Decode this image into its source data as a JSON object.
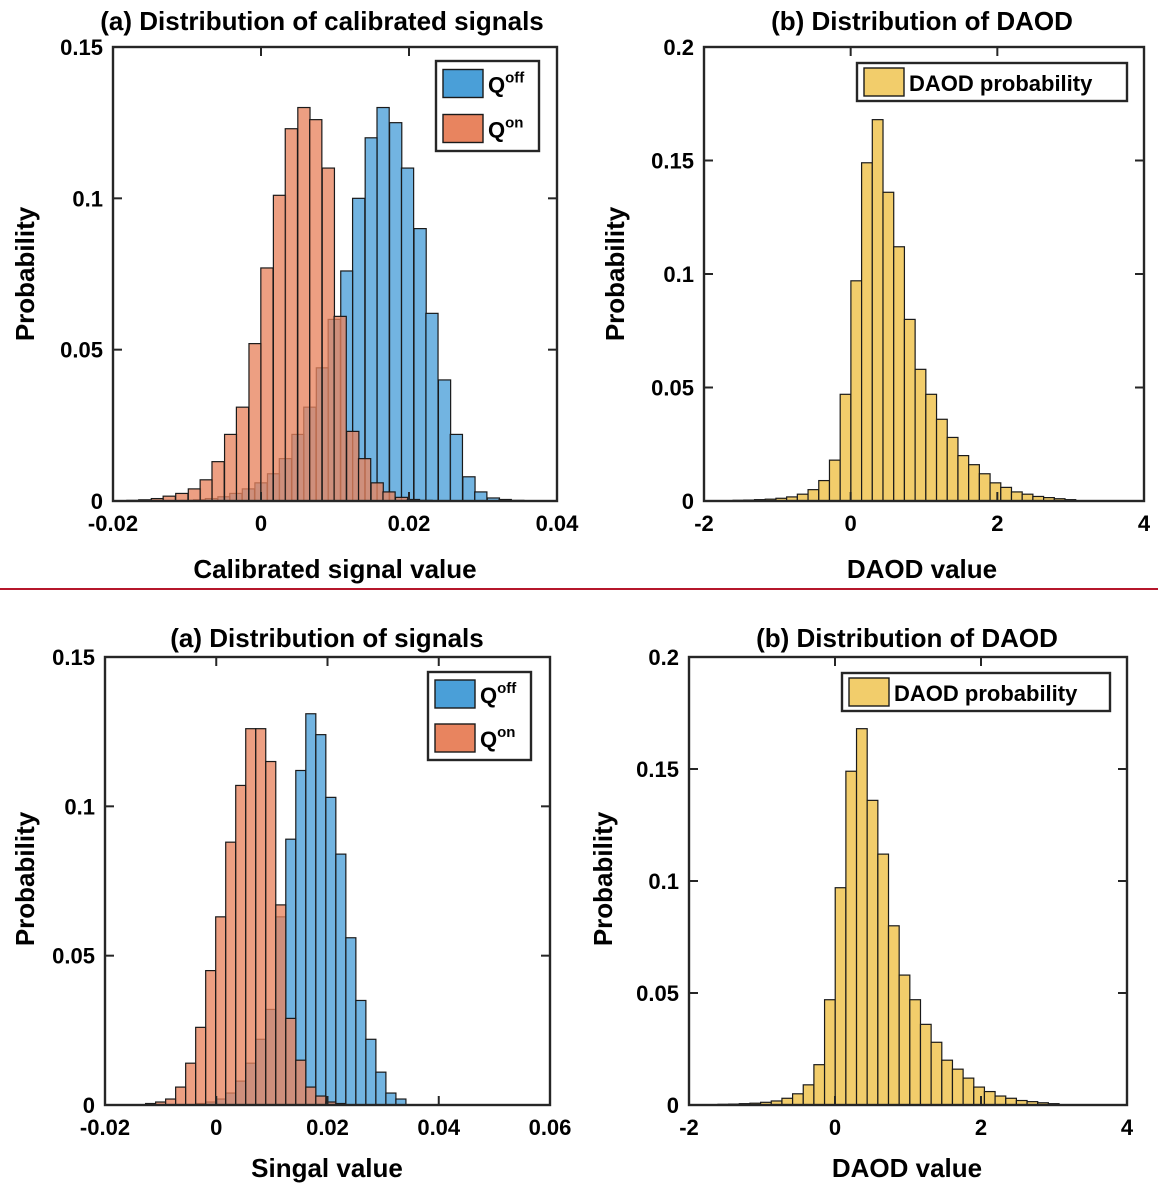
{
  "divider_color": "#b5162b",
  "colors": {
    "Q_off": "#4a9fd8",
    "Q_on": "#e8845f",
    "DAOD": "#f2cd6b",
    "edge": "#1a1a1a"
  },
  "chart_data": [
    {
      "type": "bar",
      "title": "(a) Distribution of calibrated signals",
      "xlabel": "Calibrated signal value",
      "ylabel": "Probability",
      "xlim": [
        -0.02,
        0.04
      ],
      "ylim": [
        0,
        0.15
      ],
      "xticks": [
        "-0.02",
        "0",
        "0.02",
        "0.04"
      ],
      "yticks": [
        "0",
        "0.05",
        "0.1",
        "0.15"
      ],
      "grid": false,
      "legend_position": "top-right",
      "bin_width": 0.00165,
      "series": [
        {
          "name": "Q",
          "sup": "off",
          "color_key": "Q_off",
          "x": [
            -0.01,
            -0.0083,
            -0.0067,
            -0.005,
            -0.0034,
            -0.0017,
            0.0,
            0.0017,
            0.0033,
            0.005,
            0.0066,
            0.0083,
            0.0099,
            0.0116,
            0.0132,
            0.0149,
            0.0165,
            0.0182,
            0.0198,
            0.0215,
            0.0231,
            0.0248,
            0.0264,
            0.0281,
            0.0297,
            0.0314,
            0.033,
            0.0347
          ],
          "values": [
            0.0002,
            0.0004,
            0.0008,
            0.0014,
            0.0025,
            0.004,
            0.006,
            0.009,
            0.014,
            0.022,
            0.031,
            0.044,
            0.06,
            0.076,
            0.1,
            0.12,
            0.13,
            0.125,
            0.11,
            0.09,
            0.062,
            0.04,
            0.022,
            0.008,
            0.003,
            0.001,
            0.0005,
            0.0002
          ]
        },
        {
          "name": "Q",
          "sup": "on",
          "color_key": "Q_on",
          "x": [
            -0.019,
            -0.0173,
            -0.0157,
            -0.014,
            -0.0124,
            -0.0107,
            -0.009,
            -0.0074,
            -0.0058,
            -0.0041,
            -0.0025,
            -0.0008,
            0.0008,
            0.0025,
            0.0041,
            0.0058,
            0.0074,
            0.0091,
            0.0107,
            0.0124,
            0.014,
            0.0157,
            0.0173,
            0.019,
            0.0206,
            0.0223
          ],
          "values": [
            0.0001,
            0.0002,
            0.0004,
            0.0008,
            0.0016,
            0.0025,
            0.004,
            0.007,
            0.013,
            0.022,
            0.031,
            0.052,
            0.077,
            0.101,
            0.123,
            0.13,
            0.126,
            0.11,
            0.061,
            0.023,
            0.014,
            0.006,
            0.003,
            0.0012,
            0.0005,
            0.0002
          ]
        }
      ]
    },
    {
      "type": "bar",
      "title": "(b) Distribution of DAOD",
      "xlabel": "DAOD value",
      "ylabel": "Probability",
      "xlim": [
        -2,
        4
      ],
      "ylim": [
        0,
        0.2
      ],
      "xticks": [
        "-2",
        "0",
        "2",
        "4"
      ],
      "yticks": [
        "0",
        "0.05",
        "0.1",
        "0.15",
        "0.2"
      ],
      "grid": false,
      "legend_position": "top-right",
      "bin_width": 0.146,
      "series": [
        {
          "name": "DAOD probability",
          "color_key": "DAOD",
          "x": [
            -1.53,
            -1.384,
            -1.238,
            -1.092,
            -0.946,
            -0.8,
            -0.654,
            -0.508,
            -0.362,
            -0.216,
            -0.07,
            0.076,
            0.222,
            0.368,
            0.514,
            0.66,
            0.806,
            0.952,
            1.098,
            1.244,
            1.39,
            1.536,
            1.682,
            1.828,
            1.974,
            2.12,
            2.266,
            2.412,
            2.558,
            2.704,
            2.85,
            2.996
          ],
          "values": [
            0.0003,
            0.0004,
            0.0006,
            0.0008,
            0.0012,
            0.0018,
            0.003,
            0.005,
            0.009,
            0.018,
            0.047,
            0.097,
            0.149,
            0.168,
            0.136,
            0.112,
            0.08,
            0.058,
            0.047,
            0.036,
            0.028,
            0.02,
            0.016,
            0.012,
            0.008,
            0.006,
            0.004,
            0.003,
            0.002,
            0.0015,
            0.001,
            0.0006
          ]
        }
      ]
    },
    {
      "type": "bar",
      "title": "(a) Distribution of signals",
      "xlabel": "Singal value",
      "ylabel": "Probability",
      "xlim": [
        -0.02,
        0.06
      ],
      "ylim": [
        0,
        0.15
      ],
      "xticks": [
        "-0.02",
        "0",
        "0.02",
        "0.04",
        "0.06"
      ],
      "yticks": [
        "0",
        "0.05",
        "0.1",
        "0.15"
      ],
      "grid": false,
      "legend_position": "top-right",
      "bin_width": 0.0018,
      "series": [
        {
          "name": "Q",
          "sup": "off",
          "color_key": "Q_off",
          "x": [
            -0.0028,
            -0.001,
            0.0008,
            0.0026,
            0.0044,
            0.0062,
            0.008,
            0.0098,
            0.0116,
            0.0134,
            0.0152,
            0.017,
            0.0188,
            0.0206,
            0.0224,
            0.0242,
            0.026,
            0.0278,
            0.0296,
            0.0314,
            0.0332
          ],
          "values": [
            0.0005,
            0.001,
            0.002,
            0.004,
            0.008,
            0.014,
            0.022,
            0.032,
            0.063,
            0.089,
            0.112,
            0.131,
            0.124,
            0.103,
            0.084,
            0.056,
            0.035,
            0.022,
            0.011,
            0.004,
            0.002
          ]
        },
        {
          "name": "Q",
          "sup": "on",
          "color_key": "Q_on",
          "x": [
            -0.0118,
            -0.01,
            -0.0082,
            -0.0064,
            -0.0046,
            -0.0028,
            -0.001,
            0.0008,
            0.0026,
            0.0044,
            0.0062,
            0.008,
            0.0098,
            0.0116,
            0.0134,
            0.0152,
            0.017,
            0.0188,
            0.0206,
            0.0224
          ],
          "values": [
            0.0005,
            0.001,
            0.002,
            0.006,
            0.014,
            0.026,
            0.045,
            0.063,
            0.088,
            0.107,
            0.126,
            0.126,
            0.115,
            0.067,
            0.029,
            0.015,
            0.006,
            0.003,
            0.001,
            0.0005
          ]
        }
      ]
    },
    {
      "type": "bar",
      "title": "(b) Distribution of DAOD",
      "xlabel": "DAOD value",
      "ylabel": "Probability",
      "xlim": [
        -2,
        4
      ],
      "ylim": [
        0,
        0.2
      ],
      "xticks": [
        "-2",
        "0",
        "2",
        "4"
      ],
      "yticks": [
        "0",
        "0.05",
        "0.1",
        "0.15",
        "0.2"
      ],
      "grid": false,
      "legend_position": "top-right",
      "bin_width": 0.146,
      "series": [
        {
          "name": "DAOD probability",
          "color_key": "DAOD",
          "x": [
            -1.53,
            -1.384,
            -1.238,
            -1.092,
            -0.946,
            -0.8,
            -0.654,
            -0.508,
            -0.362,
            -0.216,
            -0.07,
            0.076,
            0.222,
            0.368,
            0.514,
            0.66,
            0.806,
            0.952,
            1.098,
            1.244,
            1.39,
            1.536,
            1.682,
            1.828,
            1.974,
            2.12,
            2.266,
            2.412,
            2.558,
            2.704,
            2.85,
            2.996
          ],
          "values": [
            0.0003,
            0.0004,
            0.0006,
            0.0008,
            0.0012,
            0.0018,
            0.003,
            0.005,
            0.009,
            0.018,
            0.047,
            0.097,
            0.149,
            0.168,
            0.136,
            0.112,
            0.08,
            0.058,
            0.047,
            0.036,
            0.028,
            0.02,
            0.016,
            0.012,
            0.008,
            0.006,
            0.004,
            0.003,
            0.002,
            0.0015,
            0.001,
            0.0006
          ]
        }
      ]
    }
  ]
}
